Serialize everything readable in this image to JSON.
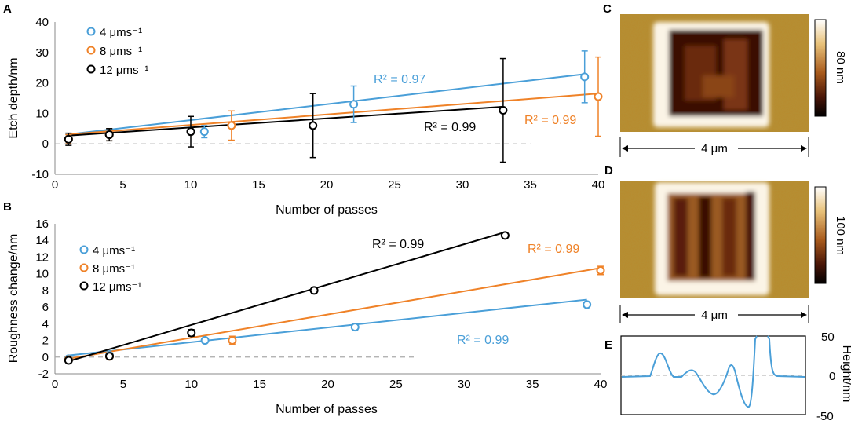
{
  "colors": {
    "s4": "#4a9fd8",
    "s8": "#ef8228",
    "s12": "#000000"
  },
  "chart_data": [
    {
      "panel": "A",
      "type": "scatter",
      "xlabel": "Number of passes",
      "ylabel": "Etch depth/nm",
      "xlim": [
        0,
        40
      ],
      "ylim": [
        -10,
        40
      ],
      "xticks": [
        0,
        5,
        10,
        15,
        20,
        25,
        30,
        35,
        40
      ],
      "yticks": [
        -10,
        0,
        10,
        20,
        30,
        40
      ],
      "legend": [
        "4 μms⁻¹",
        "8 μms⁻¹",
        "12 μms⁻¹"
      ],
      "series": [
        {
          "name": "4 μms⁻¹",
          "color": "#4a9fd8",
          "x": [
            1,
            4,
            11,
            22,
            39
          ],
          "y": [
            1.5,
            3,
            4,
            13,
            22
          ],
          "err": [
            1.5,
            2,
            2,
            6,
            8.5
          ],
          "fit": [
            [
              1,
              3.1
            ],
            [
              39,
              22.9
            ]
          ],
          "r2": "R² = 0.97"
        },
        {
          "name": "8 μms⁻¹",
          "color": "#ef8228",
          "x": [
            1,
            4,
            13,
            40
          ],
          "y": [
            1.5,
            3,
            6,
            15.5
          ],
          "err": [
            1.5,
            2,
            4.8,
            13
          ],
          "fit": [
            [
              1,
              3.1
            ],
            [
              40,
              16.5
            ]
          ],
          "r2": "R² = 0.99"
        },
        {
          "name": "12 μms⁻¹",
          "color": "#000000",
          "x": [
            1,
            4,
            10,
            19,
            33
          ],
          "y": [
            1.5,
            3,
            4,
            6,
            11
          ],
          "err": [
            2,
            2,
            5,
            10.5,
            17
          ],
          "fit": [
            [
              1,
              2.7
            ],
            [
              33,
              12.2
            ]
          ],
          "r2": "R² = 0.99"
        }
      ],
      "zero_line_x": [
        0,
        35
      ]
    },
    {
      "panel": "B",
      "type": "scatter",
      "xlabel": "Number of passes",
      "ylabel": "Roughness change/nm",
      "xlim": [
        0,
        40
      ],
      "ylim": [
        -2,
        16
      ],
      "xticks": [
        0,
        5,
        10,
        15,
        20,
        25,
        30,
        35,
        40
      ],
      "yticks": [
        -2,
        0,
        2,
        4,
        6,
        8,
        10,
        12,
        14,
        16
      ],
      "legend": [
        "4 μms⁻¹",
        "8 μms⁻¹",
        "12 μms⁻¹"
      ],
      "series": [
        {
          "name": "4 μms⁻¹",
          "color": "#4a9fd8",
          "x": [
            1,
            4,
            11,
            22,
            39
          ],
          "y": [
            -0.2,
            0.2,
            2.0,
            3.6,
            6.3
          ],
          "err": [
            0.2,
            0.2,
            0.2,
            0.4,
            0.3
          ],
          "fit": [
            [
              1,
              0.2
            ],
            [
              39,
              6.9
            ]
          ],
          "r2": "R² = 0.99"
        },
        {
          "name": "8 μms⁻¹",
          "color": "#ef8228",
          "x": [
            1,
            4,
            13,
            40
          ],
          "y": [
            -0.3,
            0.1,
            2.0,
            10.4
          ],
          "err": [
            0.2,
            0.2,
            0.5,
            0.5
          ],
          "fit": [
            [
              1,
              -0.2
            ],
            [
              40,
              10.7
            ]
          ],
          "r2": "R² = 0.99"
        },
        {
          "name": "12 μms⁻¹",
          "color": "#000000",
          "x": [
            1,
            4,
            10,
            19,
            33
          ],
          "y": [
            -0.4,
            0.1,
            2.9,
            8.0,
            14.6
          ],
          "err": [
            0.2,
            0.2,
            0.4,
            0.3,
            0.3
          ],
          "fit": [
            [
              1,
              -0.5
            ],
            [
              33,
              15.0
            ]
          ],
          "r2": "R² = 0.99"
        }
      ],
      "zero_line_x": [
        0,
        26.5
      ]
    },
    {
      "panel": "E",
      "type": "line",
      "ylabel": "Height/nm",
      "yticks": [
        50,
        0,
        -50
      ],
      "ylim": [
        -50,
        50
      ],
      "description": "height profile line scan"
    }
  ],
  "panels": {
    "C": {
      "label": "C",
      "scale": "4 μm",
      "colorbar": "80 nm"
    },
    "D": {
      "label": "D",
      "scale": "4 μm",
      "colorbar": "100 nm"
    },
    "E": {
      "label": "E"
    }
  }
}
